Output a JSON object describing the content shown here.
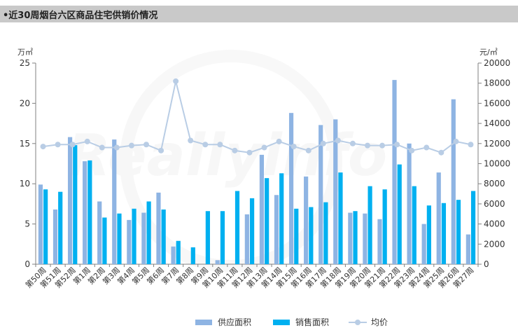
{
  "page": {
    "title": "•近30周烟台六区商品住宅供销价情况"
  },
  "colors": {
    "supply": "#8eb4e3",
    "sales": "#00b0f0",
    "price": "#b9cde5",
    "axis": "#808080",
    "text": "#333333"
  },
  "chart_data": {
    "type": "bar",
    "title": "•近30周烟台六区商品住宅供销价情况",
    "y_left_unit": "万㎡",
    "y_right_unit": "元/㎡",
    "ylim_left": [
      0,
      25
    ],
    "ylim_right": [
      0,
      20000
    ],
    "yticks_left": [
      0,
      5,
      10,
      15,
      20,
      25
    ],
    "yticks_right": [
      0,
      2000,
      4000,
      6000,
      8000,
      10000,
      12000,
      14000,
      16000,
      18000,
      20000
    ],
    "categories": [
      "第50周",
      "第51周",
      "第52周",
      "第1周",
      "第2周",
      "第3周",
      "第4周",
      "第5周",
      "第6周",
      "第7周",
      "第8周",
      "第9周",
      "第10周",
      "第11周",
      "第12周",
      "第13周",
      "第14周",
      "第15周",
      "第16周",
      "第17周",
      "第18周",
      "第19周",
      "第20周",
      "第21周",
      "第22周",
      "第23周",
      "第24周",
      "第25周",
      "第26周",
      "第27周"
    ],
    "series": [
      {
        "name": "供应面积",
        "type": "bar",
        "axis": "left",
        "values": [
          9.9,
          6.8,
          15.8,
          12.8,
          7.8,
          15.5,
          5.5,
          6.4,
          8.9,
          2.2,
          0,
          0,
          0.5,
          0,
          6.2,
          13.6,
          8.6,
          18.8,
          10.9,
          17.3,
          18.0,
          6.4,
          6.3,
          5.6,
          22.9,
          15.0,
          5.0,
          11.4,
          20.5,
          3.7
        ]
      },
      {
        "name": "销售面积",
        "type": "bar",
        "axis": "left",
        "values": [
          9.3,
          9.0,
          14.8,
          12.9,
          5.8,
          6.3,
          6.9,
          7.8,
          6.8,
          2.9,
          2.1,
          6.6,
          6.6,
          9.1,
          8.2,
          10.7,
          11.3,
          6.9,
          7.1,
          7.7,
          11.4,
          6.6,
          9.7,
          9.3,
          12.4,
          9.7,
          7.3,
          7.6,
          8.0,
          9.1
        ]
      },
      {
        "name": "均价",
        "type": "line",
        "axis": "right",
        "values": [
          11700,
          11900,
          11900,
          12200,
          11600,
          11600,
          11800,
          11900,
          11300,
          18200,
          12300,
          11900,
          11900,
          11300,
          11100,
          11600,
          12200,
          11700,
          11300,
          12000,
          12300,
          12000,
          11800,
          11800,
          11900,
          11300,
          11600,
          11100,
          12200,
          11900
        ]
      }
    ],
    "legend": {
      "placement": "bottom-center",
      "items": [
        "供应面积",
        "销售面积",
        "均价"
      ]
    },
    "grid": false,
    "watermark": "Reallyinfo"
  }
}
